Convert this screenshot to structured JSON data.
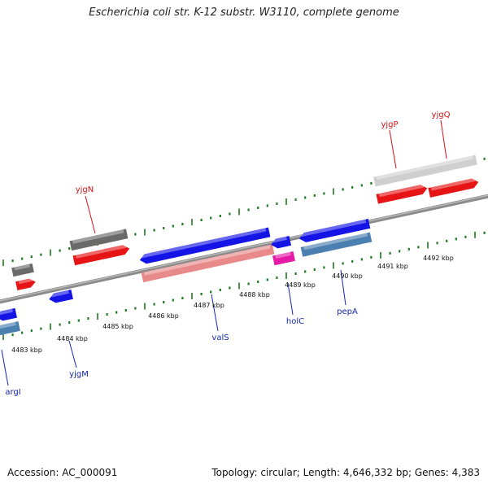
{
  "title": "Escherichia coli str. K-12 substr. W3110, complete genome",
  "footer": {
    "accession": "Accession: AC_000091",
    "summary": "Topology: circular; Length: 4,646,332 bp; Genes: 4,383"
  },
  "colors": {
    "backbone": "#8a8a8a",
    "ruler": "#1e7a1e",
    "forward_label": "#d21414",
    "reverse_label": "#1428b4",
    "blue": "#1414e6",
    "red": "#e61414",
    "dark_gray": "#6a6a6a",
    "light_gray": "#cfcfcf",
    "steel_blue": "#4a7fb0",
    "pink": "#e88a8a",
    "magenta": "#e619a8"
  },
  "tick_labels": [
    "4483 kbp",
    "4484 kbp",
    "4485 kbp",
    "4486 kbp",
    "4487 kbp",
    "4488 kbp",
    "4489 kbp",
    "4490 kbp",
    "4491 kbp",
    "4492 kbp"
  ],
  "gene_labels": [
    {
      "name": "yjgN",
      "strand": "forward"
    },
    {
      "name": "yjgP",
      "strand": "forward"
    },
    {
      "name": "yjgQ",
      "strand": "forward"
    },
    {
      "name": "argI",
      "strand": "reverse"
    },
    {
      "name": "yjgM",
      "strand": "reverse"
    },
    {
      "name": "valS",
      "strand": "reverse"
    },
    {
      "name": "holC",
      "strand": "reverse"
    },
    {
      "name": "pepA",
      "strand": "reverse"
    }
  ]
}
